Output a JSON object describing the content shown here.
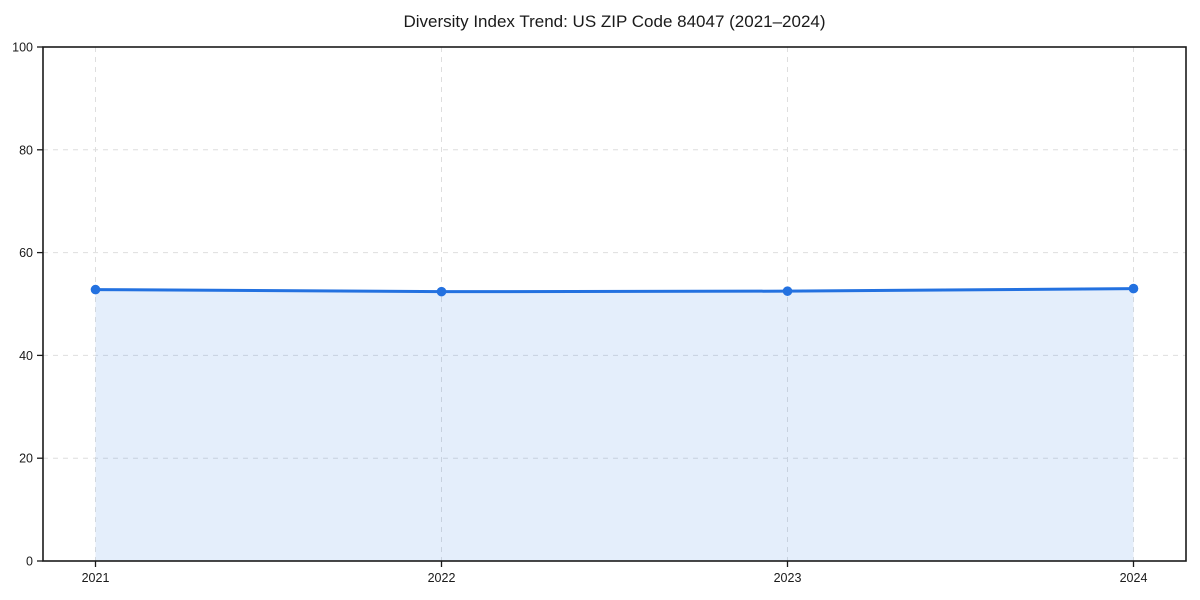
{
  "figure": {
    "background": "#ffffff"
  },
  "chart_data": {
    "type": "line",
    "title": "Diversity Index Trend: US ZIP Code 84047 (2021–2024)",
    "x": [
      "2021",
      "2022",
      "2023",
      "2024"
    ],
    "series": [
      {
        "name": "Diversity Index",
        "values": [
          52.8,
          52.4,
          52.5,
          53.0
        ]
      }
    ],
    "ylim": [
      0,
      100
    ],
    "yticks": [
      0,
      20,
      40,
      60,
      80,
      100
    ],
    "xlabel": "",
    "ylabel": "",
    "grid": true,
    "grid_style": "dashed",
    "legend_position": "none",
    "marker": "circle",
    "area_fill": true,
    "colors": {
      "line": "#2371e0",
      "fill": "rgba(35, 113, 224, 0.12)",
      "grid": "#dedede",
      "spine": "#1a1a1a",
      "tick_text": "#1a1a1a"
    }
  }
}
